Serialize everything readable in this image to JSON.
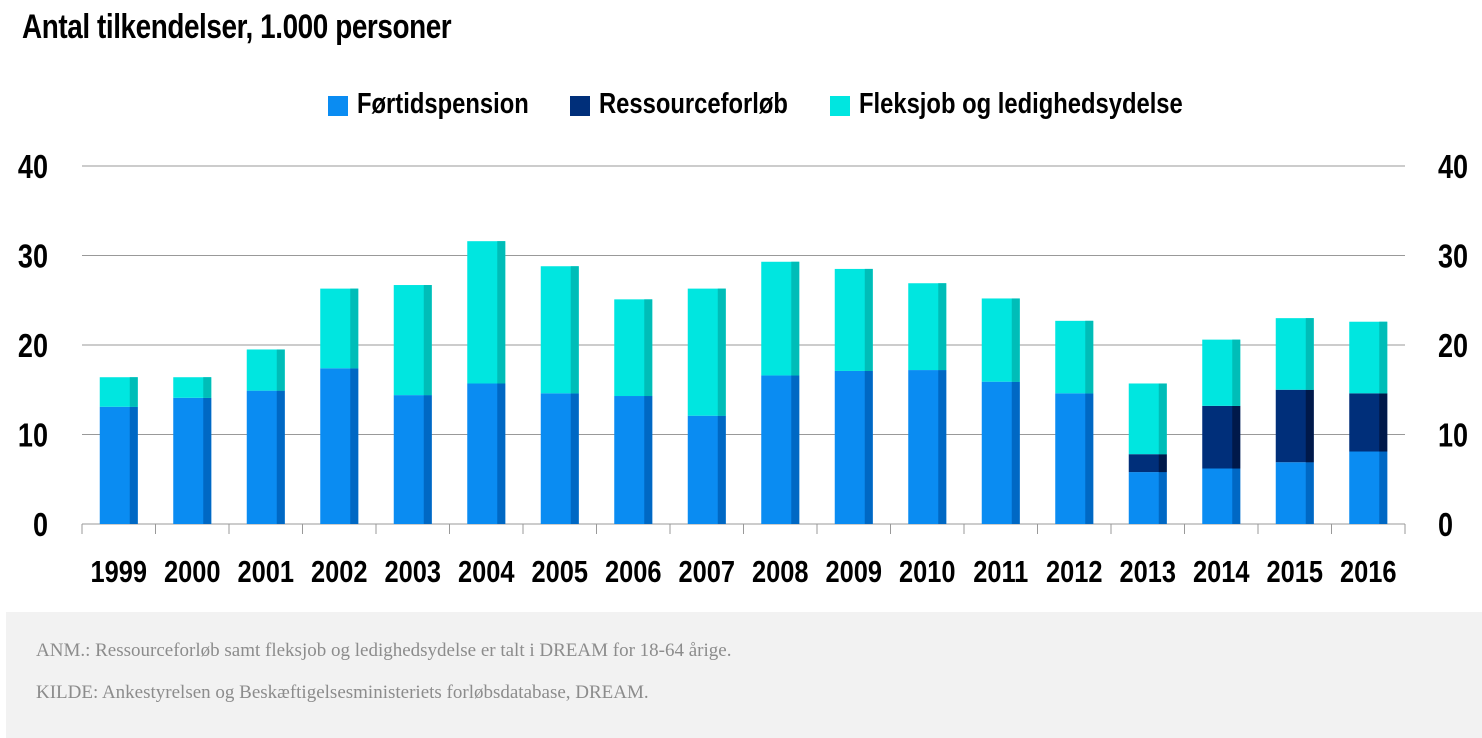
{
  "colors": {
    "fortid": "#0a8cf2",
    "fortid_dark": "#0068c4",
    "ressource": "#002f7a",
    "ressource_dark": "#00194a",
    "fleks": "#00e6e0",
    "fleks_dark": "#00bdb8",
    "grid": "#999999",
    "footer_bg": "#f2f2f2",
    "footer_text": "#8c8c8c"
  },
  "chart_data": {
    "type": "bar",
    "stacked": true,
    "title": "Antal tilkendelser, 1.000 personer",
    "categories": [
      "1999",
      "2000",
      "2001",
      "2002",
      "2003",
      "2004",
      "2005",
      "2006",
      "2007",
      "2008",
      "2009",
      "2010",
      "2011",
      "2012",
      "2013",
      "2014",
      "2015",
      "2016"
    ],
    "series": [
      {
        "name": "Førtidspension",
        "color": "#0a8cf2",
        "values": [
          13.1,
          14.1,
          14.9,
          17.4,
          14.4,
          15.7,
          14.6,
          14.3,
          12.1,
          16.6,
          17.1,
          17.2,
          15.9,
          14.6,
          5.8,
          6.2,
          6.9,
          8.1
        ]
      },
      {
        "name": "Ressourceforløb",
        "color": "#002f7a",
        "values": [
          0,
          0,
          0,
          0,
          0,
          0,
          0,
          0,
          0,
          0,
          0,
          0,
          0,
          0,
          2.0,
          7.0,
          8.1,
          6.5
        ]
      },
      {
        "name": "Fleksjob og ledighedsydelse",
        "color": "#00e6e0",
        "values": [
          3.3,
          2.3,
          4.6,
          8.9,
          12.3,
          15.9,
          14.2,
          10.8,
          14.2,
          12.7,
          11.4,
          9.7,
          9.3,
          8.1,
          7.9,
          7.4,
          8.0,
          8.0
        ]
      }
    ],
    "ylim": [
      0,
      40
    ],
    "yticks": [
      "0",
      "10",
      "20",
      "30",
      "40"
    ],
    "legend_position": "top-center",
    "grid": true,
    "secondary_axis": true
  },
  "footer": {
    "note": "ANM.: Ressourceforløb samt fleksjob og ledighedsydelse er talt i DREAM for 18-64 årige.",
    "source": "KILDE: Ankestyrelsen og Beskæftigelsesministeriets forløbsdatabase, DREAM."
  }
}
